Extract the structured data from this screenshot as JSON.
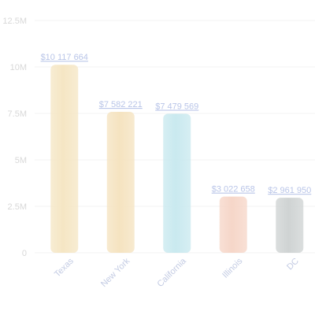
{
  "chart_data": {
    "type": "bar",
    "categories": [
      "Texas",
      "New York",
      "California",
      "Illinois",
      "DC"
    ],
    "values": [
      10117664,
      7582221,
      7479569,
      3022658,
      2961950
    ],
    "data_labels": [
      "$10 117 664",
      "$7 582 221",
      "$7 479 569",
      "$3 022 658",
      "$2 961 950"
    ],
    "y_ticks": [
      0,
      2500000,
      5000000,
      7500000,
      10000000,
      12500000
    ],
    "y_tick_labels": [
      "0",
      "2.5M",
      "5M",
      "7.5M",
      "10M",
      "12.5M"
    ],
    "ylim": [
      0,
      12500000
    ],
    "grid": true,
    "colors": [
      "#f5e6c4",
      "#f5e3c0",
      "#c9e9ef",
      "#f6d6c8",
      "#cfd3d3"
    ],
    "title": "",
    "xlabel": "",
    "ylabel": ""
  }
}
